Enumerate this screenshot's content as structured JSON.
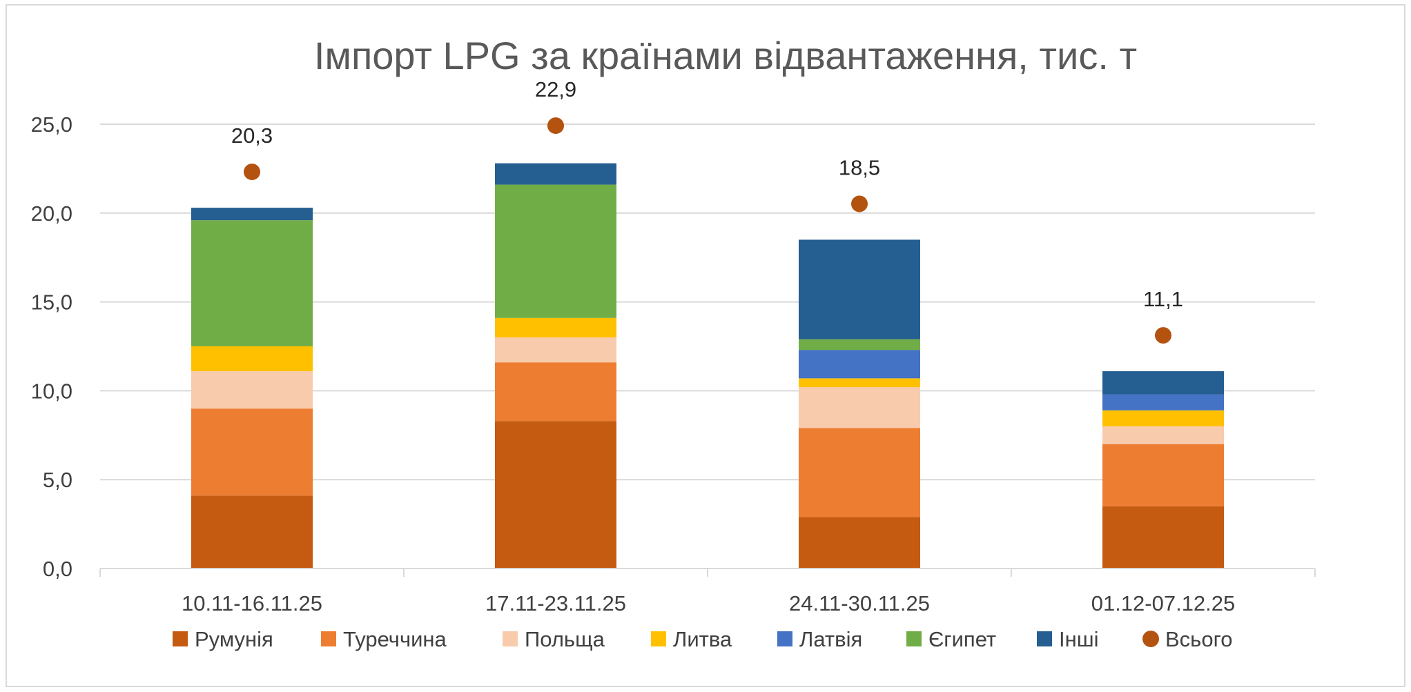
{
  "chart_data": {
    "type": "bar",
    "stacked": true,
    "title": "Імпорт LPG за країнами відвантаження, тис. т",
    "xlabel": "",
    "ylabel": "",
    "categories": [
      "10.11-16.11.25",
      "17.11-23.11.25",
      "24.11-30.11.25",
      "01.12-07.12.25"
    ],
    "ylim": [
      0,
      25
    ],
    "ytick_values": [
      0,
      5,
      10,
      15,
      20,
      25
    ],
    "ytick_labels": [
      "0,0",
      "5,0",
      "10,0",
      "15,0",
      "20,0",
      "25,0"
    ],
    "grid": true,
    "legend_position": "bottom",
    "series": [
      {
        "name": "Румунія",
        "color": "#C55A11",
        "values": [
          4.1,
          8.3,
          2.9,
          3.5
        ]
      },
      {
        "name": "Туреччина",
        "color": "#ED7D31",
        "values": [
          4.9,
          3.3,
          5.0,
          3.5
        ]
      },
      {
        "name": "Польща",
        "color": "#F8CBAD",
        "values": [
          2.1,
          1.4,
          2.3,
          1.0
        ]
      },
      {
        "name": "Литва",
        "color": "#FFC000",
        "values": [
          1.4,
          1.1,
          0.5,
          0.9
        ]
      },
      {
        "name": "Латвія",
        "color": "#4472C4",
        "values": [
          0,
          0,
          1.6,
          0.9
        ]
      },
      {
        "name": "Єгипет",
        "color": "#70AD47",
        "values": [
          7.1,
          7.5,
          0.6,
          0
        ]
      },
      {
        "name": "Інші",
        "color": "#255E91",
        "values": [
          0.7,
          1.2,
          5.6,
          1.3
        ]
      }
    ],
    "total": {
      "name": "Всього",
      "color": "#B4520F",
      "values": [
        20.3,
        22.9,
        18.5,
        11.1
      ],
      "labels": [
        "20,3",
        "22,9",
        "18,5",
        "11,1"
      ]
    }
  }
}
